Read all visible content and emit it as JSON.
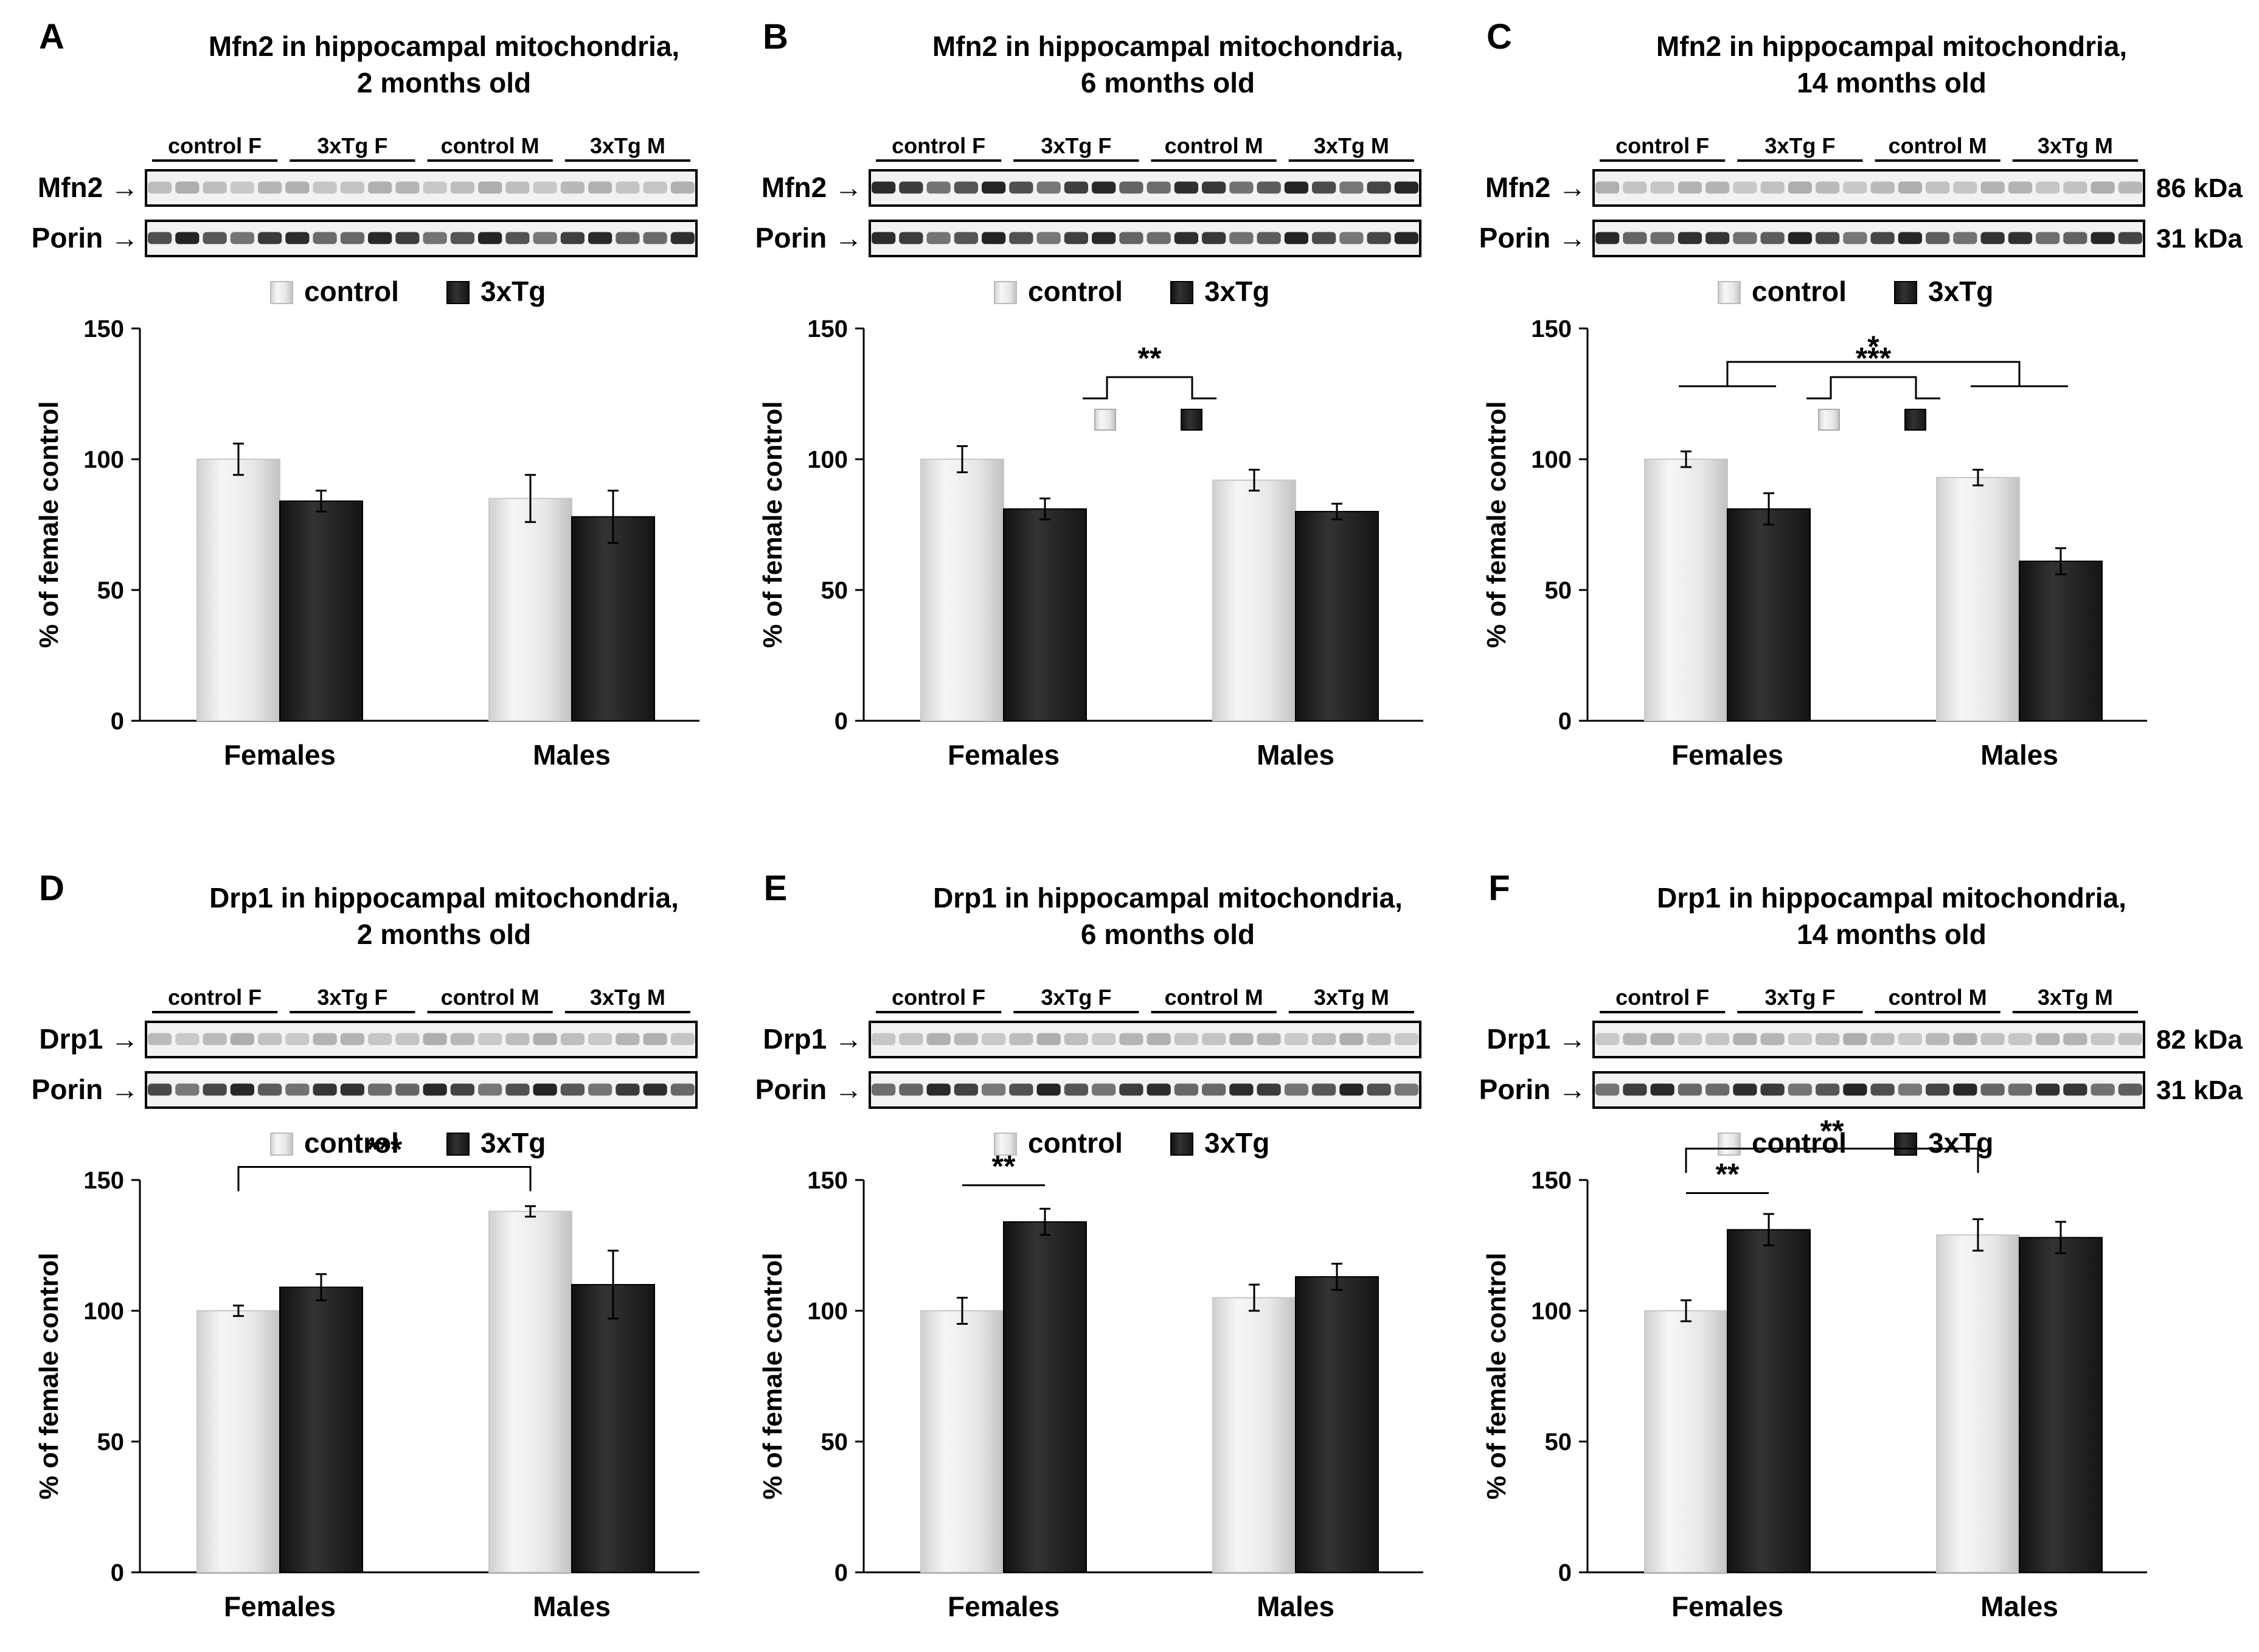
{
  "figure": {
    "legend": {
      "control": "control",
      "tg": "3xTg"
    },
    "groups": [
      "Females",
      "Males"
    ],
    "lane_groups": [
      "control F",
      "3xTg F",
      "control M",
      "3xTg M"
    ],
    "porin_label": "Porin",
    "porin_kda": "31 kDa",
    "colors": {
      "control": "#e8e8e8",
      "tg": "#262626",
      "axis": "#000000"
    }
  },
  "chart_data": [
    {
      "type": "bar",
      "panel": "A",
      "title": [
        "Mfn2 in hippocampal mitochondria,",
        "2 months old"
      ],
      "protein": "Mfn2",
      "kda": "",
      "ylabel": "% of female control",
      "yticks": [
        0,
        50,
        100,
        150
      ],
      "ylim": [
        0,
        150
      ],
      "categories": [
        "Females",
        "Males"
      ],
      "series": [
        {
          "name": "control",
          "values": [
            100,
            85
          ],
          "errors": [
            6,
            9
          ]
        },
        {
          "name": "3xTg",
          "values": [
            84,
            78
          ],
          "errors": [
            4,
            10
          ]
        }
      ],
      "annotations": []
    },
    {
      "type": "bar",
      "panel": "B",
      "title": [
        "Mfn2 in hippocampal mitochondria,",
        "6 months old"
      ],
      "protein": "Mfn2",
      "kda": "",
      "ylabel": "% of female control",
      "yticks": [
        0,
        50,
        100,
        150
      ],
      "ylim": [
        0,
        150
      ],
      "categories": [
        "Females",
        "Males"
      ],
      "series": [
        {
          "name": "control",
          "values": [
            100,
            92
          ],
          "errors": [
            5,
            4
          ]
        },
        {
          "name": "3xTg",
          "values": [
            81,
            80
          ],
          "errors": [
            4,
            3
          ]
        }
      ],
      "annotations": [
        {
          "kind": "genotype",
          "label": "**"
        }
      ]
    },
    {
      "type": "bar",
      "panel": "C",
      "title": [
        "Mfn2 in hippocampal mitochondria,",
        "14 months old"
      ],
      "protein": "Mfn2",
      "kda": "86 kDa",
      "ylabel": "% of female control",
      "yticks": [
        0,
        50,
        100,
        150
      ],
      "ylim": [
        0,
        150
      ],
      "categories": [
        "Females",
        "Males"
      ],
      "series": [
        {
          "name": "control",
          "values": [
            100,
            93
          ],
          "errors": [
            3,
            3
          ]
        },
        {
          "name": "3xTg",
          "values": [
            81,
            61
          ],
          "errors": [
            6,
            5
          ]
        }
      ],
      "annotations": [
        {
          "kind": "sex",
          "label": "*"
        },
        {
          "kind": "genotype",
          "label": "***"
        }
      ]
    },
    {
      "type": "bar",
      "panel": "D",
      "title": [
        "Drp1 in hippocampal mitochondria,",
        "2 months old"
      ],
      "protein": "Drp1",
      "kda": "",
      "ylabel": "% of female control",
      "yticks": [
        0,
        50,
        100,
        150
      ],
      "ylim": [
        0,
        150
      ],
      "categories": [
        "Females",
        "Males"
      ],
      "series": [
        {
          "name": "control",
          "values": [
            100,
            138
          ],
          "errors": [
            2,
            2
          ]
        },
        {
          "name": "3xTg",
          "values": [
            109,
            110
          ],
          "errors": [
            5,
            13
          ]
        }
      ],
      "annotations": [
        {
          "kind": "pair",
          "from": [
            0,
            0
          ],
          "to": [
            1,
            0
          ],
          "label": "***",
          "level": 155
        }
      ]
    },
    {
      "type": "bar",
      "panel": "E",
      "title": [
        "Drp1 in hippocampal mitochondria,",
        "6 months old"
      ],
      "protein": "Drp1",
      "kda": "",
      "ylabel": "% of  female control",
      "yticks": [
        0,
        50,
        100,
        150
      ],
      "ylim": [
        0,
        150
      ],
      "categories": [
        "Females",
        "Males"
      ],
      "series": [
        {
          "name": "control",
          "values": [
            100,
            105
          ],
          "errors": [
            5,
            5
          ]
        },
        {
          "name": "3xTg",
          "values": [
            134,
            113
          ],
          "errors": [
            5,
            5
          ]
        }
      ],
      "annotations": [
        {
          "kind": "line",
          "from": [
            0,
            0
          ],
          "to": [
            0,
            1
          ],
          "label": "**",
          "level": 148
        }
      ]
    },
    {
      "type": "bar",
      "panel": "F",
      "title": [
        "Drp1 in hippocampal mitochondria,",
        "14 months old"
      ],
      "protein": "Drp1",
      "kda": "82 kDa",
      "ylabel": "% of female control",
      "yticks": [
        0,
        50,
        100,
        150
      ],
      "ylim": [
        0,
        150
      ],
      "categories": [
        "Females",
        "Males"
      ],
      "series": [
        {
          "name": "control",
          "values": [
            100,
            129
          ],
          "errors": [
            4,
            6
          ]
        },
        {
          "name": "3xTg",
          "values": [
            131,
            128
          ],
          "errors": [
            6,
            6
          ]
        }
      ],
      "annotations": [
        {
          "kind": "pair",
          "from": [
            0,
            0
          ],
          "to": [
            1,
            0
          ],
          "label": "**",
          "level": 162
        },
        {
          "kind": "line",
          "from": [
            0,
            0
          ],
          "to": [
            0,
            1
          ],
          "label": "**",
          "level": 145
        }
      ]
    }
  ]
}
